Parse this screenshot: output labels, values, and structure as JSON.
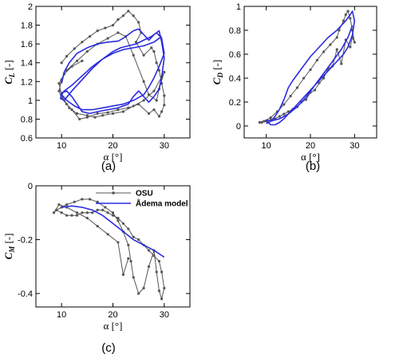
{
  "colors": {
    "osu": "#555555",
    "model": "#2a2ae0",
    "axis": "#000000"
  },
  "chart_data": [
    {
      "type": "line",
      "panel_label": "(a)",
      "xlabel": "α [°]",
      "ylabel_main": "C",
      "ylabel_sub": "L",
      "ylabel_unit": " [-]",
      "xlim": [
        5,
        35
      ],
      "ylim": [
        0.6,
        2.0
      ],
      "xticks": [
        10,
        20,
        30
      ],
      "yticks": [
        0.6,
        0.8,
        1.0,
        1.2,
        1.4,
        1.6,
        1.8,
        2.0
      ],
      "ytick_labels": [
        "0.6",
        "0.8",
        "1",
        "1.2",
        "1.4",
        "1.6",
        "1.8",
        "2"
      ],
      "series": [
        {
          "id": "osu",
          "marker": "circle",
          "x": [
            10.0,
            11.0,
            12.5,
            14.0,
            15.5,
            17.0,
            18.5,
            20.0,
            21.0,
            22.0,
            23.0,
            24.0,
            25.0,
            25.5,
            24.5,
            26.0,
            27.5,
            28.0,
            28.5,
            29.0,
            29.5,
            30.0,
            30.0,
            29.5,
            29.0,
            28.0,
            27.0,
            25.0,
            23.0,
            21.0,
            19.0,
            17.0,
            15.0,
            13.5,
            12.0,
            11.0,
            10.0,
            9.5,
            10.0,
            11.0,
            13.0,
            15.0,
            17.0,
            19.0,
            21.0,
            22.5,
            24.0,
            26.0,
            27.0,
            28.5,
            29.0,
            30.0,
            29.5,
            28.0,
            26.0,
            24.0,
            22.0,
            20.0,
            18.0,
            16.5,
            15.0,
            13.0,
            11.5,
            10.0,
            9.5,
            10.5,
            12.0,
            14.0
          ],
          "y": [
            1.4,
            1.47,
            1.55,
            1.62,
            1.68,
            1.74,
            1.77,
            1.8,
            1.86,
            1.9,
            1.95,
            1.9,
            1.83,
            1.72,
            1.62,
            1.48,
            1.56,
            1.52,
            1.4,
            1.32,
            1.18,
            1.05,
            0.95,
            0.88,
            0.83,
            0.9,
            0.86,
            0.96,
            0.92,
            0.9,
            0.87,
            0.86,
            0.82,
            0.8,
            0.9,
            0.96,
            1.02,
            1.1,
            1.22,
            1.32,
            1.42,
            1.52,
            1.6,
            1.66,
            1.72,
            1.68,
            1.48,
            1.2,
            1.06,
            1.0,
            1.12,
            1.3,
            1.25,
            1.1,
            1.0,
            0.94,
            0.88,
            0.86,
            0.84,
            0.82,
            0.84,
            0.86,
            0.92,
            1.05,
            1.18,
            1.28,
            1.36,
            1.42
          ]
        },
        {
          "id": "model",
          "marker": "none",
          "x": [
            10.0,
            10.5,
            11.5,
            13.0,
            15.0,
            17.0,
            19.0,
            21.0,
            22.0,
            23.0,
            24.0,
            25.0,
            26.0,
            27.0,
            28.0,
            29.0,
            29.5,
            30.0,
            29.5,
            29.0,
            28.0,
            27.0,
            26.0,
            25.0,
            24.0,
            23.0,
            21.0,
            19.0,
            17.0,
            15.5,
            14.0,
            13.0,
            12.0,
            11.0,
            10.0,
            9.8,
            10.5,
            12.0,
            14.0,
            16.0,
            18.0,
            20.0,
            21.5,
            23.0,
            24.5,
            26.0,
            27.5,
            28.5,
            29.5,
            30.0,
            29.0,
            28.0,
            27.0,
            26.0,
            24.0,
            22.0,
            20.0,
            18.0,
            16.0,
            14.0,
            12.5,
            11.0,
            10.0,
            10.5,
            12.0,
            14.0,
            16.0,
            18.0,
            20.0,
            22.0,
            24.0,
            26.0,
            28.0,
            29.5
          ],
          "y": [
            1.18,
            1.3,
            1.4,
            1.5,
            1.56,
            1.6,
            1.62,
            1.63,
            1.66,
            1.7,
            1.74,
            1.76,
            1.7,
            1.64,
            1.7,
            1.74,
            1.62,
            1.45,
            1.25,
            1.12,
            1.04,
            0.98,
            1.04,
            1.1,
            1.04,
            0.96,
            0.92,
            0.9,
            0.88,
            0.86,
            0.88,
            0.96,
            1.04,
            1.1,
            1.08,
            1.02,
            1.0,
            1.1,
            1.22,
            1.34,
            1.44,
            1.52,
            1.56,
            1.58,
            1.6,
            1.64,
            1.68,
            1.72,
            1.66,
            1.5,
            1.36,
            1.24,
            1.14,
            1.06,
            1.0,
            0.96,
            0.94,
            0.92,
            0.9,
            0.9,
            0.94,
            1.0,
            1.06,
            1.1,
            1.16,
            1.26,
            1.36,
            1.44,
            1.5,
            1.54,
            1.56,
            1.58,
            1.62,
            1.68
          ]
        }
      ]
    },
    {
      "type": "line",
      "panel_label": "(b)",
      "xlabel": "α [°]",
      "ylabel_main": "C",
      "ylabel_sub": "D",
      "ylabel_unit": " [-]",
      "xlim": [
        5,
        35
      ],
      "ylim": [
        -0.1,
        1.0
      ],
      "xticks": [
        10,
        20,
        30
      ],
      "yticks": [
        0,
        0.2,
        0.4,
        0.6,
        0.8,
        1.0
      ],
      "ytick_labels": [
        "0",
        "0.2",
        "0.4",
        "0.6",
        "0.8",
        "1"
      ],
      "series": [
        {
          "id": "osu",
          "marker": "circle",
          "x": [
            8.5,
            9.5,
            11.0,
            12.5,
            14.0,
            15.5,
            17.0,
            18.5,
            20.0,
            21.5,
            23.0,
            24.5,
            26.0,
            26.5,
            27.5,
            28.0,
            28.5,
            29.0,
            29.5,
            30.0,
            29.5,
            29.0,
            28.0,
            27.0,
            26.0,
            25.0,
            24.0,
            23.0,
            22.0,
            21.0,
            20.0,
            19.0,
            18.0,
            17.0,
            16.0,
            15.0,
            14.0,
            13.0,
            12.0,
            11.0,
            10.0,
            9.0
          ],
          "y": [
            0.03,
            0.04,
            0.07,
            0.12,
            0.18,
            0.25,
            0.32,
            0.4,
            0.47,
            0.55,
            0.62,
            0.68,
            0.74,
            0.8,
            0.88,
            0.93,
            0.96,
            0.9,
            0.8,
            0.7,
            0.74,
            0.66,
            0.72,
            0.52,
            0.64,
            0.5,
            0.48,
            0.4,
            0.36,
            0.3,
            0.28,
            0.22,
            0.2,
            0.16,
            0.14,
            0.12,
            0.1,
            0.08,
            0.06,
            0.05,
            0.04,
            0.03
          ]
        },
        {
          "id": "model",
          "marker": "none",
          "x": [
            10.0,
            11.0,
            12.0,
            13.0,
            14.0,
            15.0,
            16.0,
            18.0,
            20.0,
            22.0,
            24.0,
            26.0,
            27.0,
            28.0,
            29.0,
            29.5,
            30.0,
            29.5,
            28.5,
            27.5,
            26.0,
            24.0,
            22.0,
            20.0,
            18.0,
            16.0,
            15.0,
            14.0,
            13.0,
            12.0,
            11.0,
            10.5,
            10.0,
            11.0,
            13.0,
            15.0,
            17.0,
            19.0,
            21.0,
            23.0,
            25.0,
            27.0,
            28.5,
            29.5
          ],
          "y": [
            0.02,
            0.04,
            0.08,
            0.14,
            0.22,
            0.32,
            0.38,
            0.48,
            0.58,
            0.66,
            0.74,
            0.8,
            0.84,
            0.88,
            0.93,
            0.96,
            0.88,
            0.76,
            0.66,
            0.6,
            0.54,
            0.46,
            0.38,
            0.3,
            0.22,
            0.14,
            0.1,
            0.06,
            0.03,
            0.01,
            0.01,
            0.03,
            0.05,
            0.04,
            0.06,
            0.1,
            0.16,
            0.24,
            0.34,
            0.44,
            0.54,
            0.64,
            0.74,
            0.84
          ]
        }
      ]
    },
    {
      "type": "line",
      "panel_label": "(c)",
      "xlabel": "α [°]",
      "ylabel_main": "C",
      "ylabel_sub": "M",
      "ylabel_unit": " [-]",
      "xlim": [
        5,
        35
      ],
      "ylim": [
        -0.45,
        0.0
      ],
      "xticks": [
        10,
        20,
        30
      ],
      "yticks": [
        0,
        -0.2,
        -0.4
      ],
      "ytick_labels": [
        "0",
        "-0.2",
        "-0.4"
      ],
      "legend": {
        "position": "top-right",
        "entries": [
          "OSU",
          "Ådema model"
        ]
      },
      "series": [
        {
          "id": "osu",
          "name": "OSU",
          "marker": "circle",
          "x": [
            9.0,
            10.0,
            11.0,
            12.5,
            14.0,
            15.5,
            17.0,
            18.5,
            20.0,
            21.0,
            22.0,
            23.0,
            23.5,
            24.0,
            25.0,
            26.0,
            27.0,
            28.0,
            28.5,
            29.0,
            29.5,
            30.0,
            29.5,
            29.0,
            28.0,
            27.0,
            26.0,
            25.0,
            24.0,
            23.0,
            22.0,
            21.0,
            20.0,
            19.0,
            18.0,
            17.0,
            16.0,
            15.0,
            14.0,
            13.0,
            12.0,
            11.0,
            10.0,
            9.0,
            8.5,
            9.5,
            11.0,
            13.0,
            15.0,
            17.0,
            19.0,
            21.0,
            22.0,
            23.0
          ],
          "y": [
            -0.09,
            -0.08,
            -0.07,
            -0.06,
            -0.05,
            -0.05,
            -0.06,
            -0.08,
            -0.1,
            -0.13,
            -0.17,
            -0.22,
            -0.28,
            -0.34,
            -0.4,
            -0.38,
            -0.3,
            -0.24,
            -0.32,
            -0.39,
            -0.42,
            -0.38,
            -0.32,
            -0.28,
            -0.26,
            -0.24,
            -0.22,
            -0.2,
            -0.19,
            -0.16,
            -0.14,
            -0.12,
            -0.11,
            -0.1,
            -0.09,
            -0.09,
            -0.1,
            -0.1,
            -0.1,
            -0.11,
            -0.11,
            -0.11,
            -0.1,
            -0.09,
            -0.1,
            -0.07,
            -0.08,
            -0.1,
            -0.12,
            -0.15,
            -0.18,
            -0.21,
            -0.33,
            -0.27
          ]
        },
        {
          "id": "model",
          "name": "Ådema model",
          "marker": "none",
          "x": [
            10.0,
            12.0,
            14.0,
            16.0,
            18.0,
            20.0,
            22.0,
            24.0,
            26.0,
            28.0,
            30.0
          ],
          "y": [
            -0.08,
            -0.075,
            -0.08,
            -0.09,
            -0.11,
            -0.14,
            -0.17,
            -0.2,
            -0.22,
            -0.24,
            -0.265
          ]
        }
      ]
    }
  ]
}
